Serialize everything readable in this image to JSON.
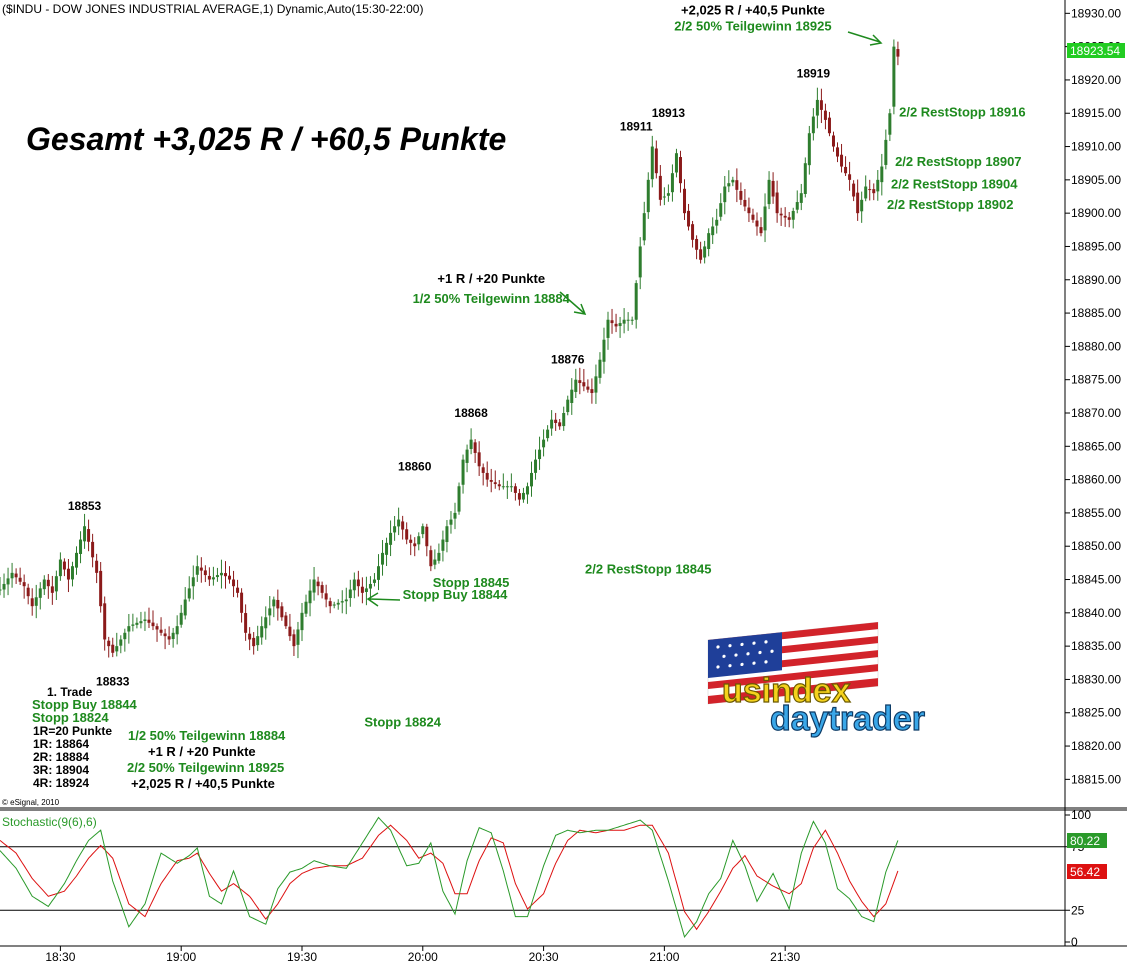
{
  "header": {
    "title": "($INDU - DOW JONES INDUSTRIAL AVERAGE,1) Dynamic,Auto(15:30-22:00)"
  },
  "headline": "Gesamt +3,025 R / +60,5 Punkte",
  "copyright": "© eSignal, 2010",
  "logo": {
    "line1": "usindex",
    "line2": "daytrader"
  },
  "colors": {
    "green": "#1e8a1e",
    "up": "#2e7d2e",
    "down": "#8b1a1a",
    "stoch_k": "#2a9a2a",
    "stoch_d": "#dd1111",
    "last_price_bg": "#22cc22"
  },
  "chart_data": {
    "type": "candlestick",
    "price_axis": {
      "ylim": [
        18811,
        18932
      ],
      "ticks": [
        18815,
        18820,
        18825,
        18830,
        18835,
        18840,
        18845,
        18850,
        18855,
        18860,
        18865,
        18870,
        18875,
        18880,
        18885,
        18890,
        18895,
        18900,
        18905,
        18910,
        18915,
        18920,
        18925,
        18930
      ],
      "tick_labels": [
        "18815.00",
        "18820.00",
        "18825.00",
        "18830.00",
        "18835.00",
        "18840.00",
        "18845.00",
        "18850.00",
        "18855.00",
        "18860.00",
        "18865.00",
        "18870.00",
        "18875.00",
        "18880.00",
        "18885.00",
        "18890.00",
        "18895.00",
        "18900.00",
        "18905.00",
        "18910.00",
        "18915.00",
        "18920.00",
        "18925.00",
        "18930.00"
      ],
      "last_price": 18923.54,
      "last_price_label": "18923.54"
    },
    "time_axis": {
      "labels": [
        "18:30",
        "19:00",
        "19:30",
        "20:00",
        "20:30",
        "21:00",
        "21:30"
      ],
      "label_minutes": [
        15,
        45,
        75,
        105,
        135,
        165,
        195
      ],
      "xlim": [
        0,
        264
      ]
    },
    "price_anchors": [
      [
        0,
        18843.5
      ],
      [
        3,
        18846
      ],
      [
        6,
        18844
      ],
      [
        8,
        18841
      ],
      [
        11,
        18845
      ],
      [
        13,
        18843
      ],
      [
        15,
        18848
      ],
      [
        17,
        18845
      ],
      [
        19,
        18849
      ],
      [
        21,
        18853
      ],
      [
        24,
        18846
      ],
      [
        26,
        18836
      ],
      [
        28,
        18834
      ],
      [
        32,
        18838
      ],
      [
        36,
        18839
      ],
      [
        40,
        18837
      ],
      [
        42,
        18836
      ],
      [
        44,
        18838
      ],
      [
        46,
        18842
      ],
      [
        49,
        18847
      ],
      [
        52,
        18845
      ],
      [
        55,
        18846
      ],
      [
        57,
        18845
      ],
      [
        59,
        18843
      ],
      [
        61,
        18837
      ],
      [
        63,
        18835
      ],
      [
        65,
        18838
      ],
      [
        68,
        18842
      ],
      [
        71,
        18838
      ],
      [
        73,
        18835
      ],
      [
        75,
        18840
      ],
      [
        78,
        18845
      ],
      [
        80,
        18843
      ],
      [
        82,
        18841
      ],
      [
        86,
        18842
      ],
      [
        88,
        18845
      ],
      [
        90,
        18843
      ],
      [
        93,
        18845
      ],
      [
        95,
        18849
      ],
      [
        97,
        18852
      ],
      [
        99,
        18854
      ],
      [
        101,
        18851
      ],
      [
        103,
        18850
      ],
      [
        105,
        18853
      ],
      [
        107,
        18847
      ],
      [
        109,
        18849
      ],
      [
        111,
        18853
      ],
      [
        113,
        18855
      ],
      [
        115,
        18863
      ],
      [
        117,
        18866
      ],
      [
        119,
        18862
      ],
      [
        121,
        18860
      ],
      [
        124,
        18859
      ],
      [
        127,
        18859
      ],
      [
        129,
        18857
      ],
      [
        131,
        18859
      ],
      [
        133,
        18863
      ],
      [
        135,
        18866
      ],
      [
        137,
        18869
      ],
      [
        139,
        18868
      ],
      [
        141,
        18872
      ],
      [
        143,
        18875
      ],
      [
        145,
        18874
      ],
      [
        147,
        18873
      ],
      [
        149,
        18878
      ],
      [
        151,
        18884
      ],
      [
        153,
        18883
      ],
      [
        155,
        18884
      ],
      [
        157,
        18884
      ],
      [
        159,
        18895
      ],
      [
        162,
        18910
      ],
      [
        164,
        18902
      ],
      [
        166,
        18903
      ],
      [
        168,
        18909
      ],
      [
        170,
        18900
      ],
      [
        172,
        18896
      ],
      [
        174,
        18893
      ],
      [
        176,
        18897
      ],
      [
        178,
        18899
      ],
      [
        180,
        18904
      ],
      [
        182,
        18905
      ],
      [
        184,
        18902
      ],
      [
        187,
        18899
      ],
      [
        189,
        18897
      ],
      [
        191,
        18905
      ],
      [
        193,
        18900
      ],
      [
        196,
        18899
      ],
      [
        199,
        18903
      ],
      [
        201,
        18912
      ],
      [
        203,
        18917
      ],
      [
        205,
        18914
      ],
      [
        207,
        18910
      ],
      [
        209,
        18907
      ],
      [
        211,
        18905
      ],
      [
        213,
        18900
      ],
      [
        215,
        18904
      ],
      [
        217,
        18903
      ],
      [
        219,
        18907
      ],
      [
        221,
        18915
      ],
      [
        222,
        18925
      ],
      [
        223,
        18923.5
      ]
    ],
    "stochastic": {
      "label": "Stochastic(9(6),6)",
      "ylim": [
        0,
        100
      ],
      "ticks": [
        0,
        25,
        75,
        100
      ],
      "tick_labels": [
        "0",
        "25",
        "75",
        "100"
      ],
      "bands": [
        25,
        75
      ],
      "k_label": "80.22",
      "d_label": "56.42",
      "k_anchors": [
        [
          0,
          72
        ],
        [
          4,
          58
        ],
        [
          8,
          36
        ],
        [
          12,
          28
        ],
        [
          16,
          46
        ],
        [
          19,
          64
        ],
        [
          22,
          80
        ],
        [
          25,
          88
        ],
        [
          28,
          48
        ],
        [
          32,
          12
        ],
        [
          36,
          30
        ],
        [
          40,
          70
        ],
        [
          44,
          62
        ],
        [
          47,
          68
        ],
        [
          49,
          74
        ],
        [
          52,
          36
        ],
        [
          55,
          30
        ],
        [
          58,
          56
        ],
        [
          62,
          20
        ],
        [
          66,
          14
        ],
        [
          69,
          42
        ],
        [
          72,
          55
        ],
        [
          75,
          58
        ],
        [
          78,
          64
        ],
        [
          82,
          60
        ],
        [
          86,
          58
        ],
        [
          90,
          78
        ],
        [
          94,
          98
        ],
        [
          97,
          88
        ],
        [
          101,
          60
        ],
        [
          104,
          62
        ],
        [
          107,
          78
        ],
        [
          110,
          40
        ],
        [
          113,
          22
        ],
        [
          116,
          64
        ],
        [
          119,
          90
        ],
        [
          122,
          86
        ],
        [
          125,
          56
        ],
        [
          128,
          20
        ],
        [
          131,
          20
        ],
        [
          135,
          60
        ],
        [
          138,
          84
        ],
        [
          141,
          88
        ],
        [
          144,
          86
        ],
        [
          148,
          88
        ],
        [
          151,
          88
        ],
        [
          155,
          92
        ],
        [
          159,
          96
        ],
        [
          162,
          88
        ],
        [
          166,
          48
        ],
        [
          170,
          4
        ],
        [
          173,
          16
        ],
        [
          176,
          38
        ],
        [
          179,
          50
        ],
        [
          182,
          80
        ],
        [
          185,
          60
        ],
        [
          188,
          32
        ],
        [
          192,
          54
        ],
        [
          196,
          26
        ],
        [
          199,
          70
        ],
        [
          202,
          95
        ],
        [
          205,
          78
        ],
        [
          208,
          42
        ],
        [
          211,
          34
        ],
        [
          214,
          20
        ],
        [
          217,
          16
        ],
        [
          220,
          55
        ],
        [
          223,
          80
        ]
      ],
      "d_anchors": [
        [
          0,
          80
        ],
        [
          4,
          70
        ],
        [
          8,
          50
        ],
        [
          12,
          36
        ],
        [
          16,
          40
        ],
        [
          19,
          52
        ],
        [
          22,
          66
        ],
        [
          25,
          76
        ],
        [
          28,
          66
        ],
        [
          32,
          30
        ],
        [
          36,
          20
        ],
        [
          40,
          46
        ],
        [
          44,
          64
        ],
        [
          47,
          66
        ],
        [
          49,
          70
        ],
        [
          52,
          54
        ],
        [
          55,
          40
        ],
        [
          58,
          46
        ],
        [
          62,
          36
        ],
        [
          66,
          18
        ],
        [
          69,
          30
        ],
        [
          72,
          46
        ],
        [
          75,
          54
        ],
        [
          78,
          58
        ],
        [
          82,
          60
        ],
        [
          86,
          60
        ],
        [
          90,
          66
        ],
        [
          94,
          84
        ],
        [
          97,
          92
        ],
        [
          101,
          80
        ],
        [
          104,
          66
        ],
        [
          107,
          70
        ],
        [
          110,
          62
        ],
        [
          113,
          38
        ],
        [
          116,
          38
        ],
        [
          119,
          64
        ],
        [
          122,
          82
        ],
        [
          125,
          78
        ],
        [
          128,
          46
        ],
        [
          131,
          26
        ],
        [
          135,
          38
        ],
        [
          138,
          62
        ],
        [
          141,
          80
        ],
        [
          144,
          88
        ],
        [
          148,
          86
        ],
        [
          151,
          88
        ],
        [
          155,
          88
        ],
        [
          159,
          92
        ],
        [
          162,
          92
        ],
        [
          166,
          70
        ],
        [
          170,
          24
        ],
        [
          173,
          10
        ],
        [
          176,
          24
        ],
        [
          179,
          40
        ],
        [
          182,
          58
        ],
        [
          185,
          68
        ],
        [
          188,
          52
        ],
        [
          192,
          44
        ],
        [
          196,
          38
        ],
        [
          199,
          46
        ],
        [
          202,
          74
        ],
        [
          205,
          88
        ],
        [
          208,
          70
        ],
        [
          211,
          48
        ],
        [
          214,
          32
        ],
        [
          217,
          20
        ],
        [
          220,
          30
        ],
        [
          223,
          56
        ]
      ]
    }
  },
  "peaks": [
    {
      "text": "18853",
      "t": 21,
      "p": 18853
    },
    {
      "text": "18860",
      "t": 103,
      "p": 18859
    },
    {
      "text": "18868",
      "t": 117,
      "p": 18867
    },
    {
      "text": "18876",
      "t": 141,
      "p": 18875
    },
    {
      "text": "18911",
      "t": 158,
      "p": 18910
    },
    {
      "text": "18913",
      "t": 166,
      "p": 18912
    },
    {
      "text": "18919",
      "t": 202,
      "p": 18918
    }
  ],
  "troughs": [
    {
      "text": "18833",
      "t": 28,
      "p": 18833
    }
  ],
  "chart_annotations": [
    {
      "text": "+1 R / +20 Punkte",
      "t": 122,
      "p": 18889.5,
      "color": "black"
    },
    {
      "text": "1/2 50% Teilgewinn 18884",
      "t": 122,
      "p": 18886.5,
      "color": "green"
    },
    {
      "text": "+2,025 R / +40,5 Punkte",
      "t": 187,
      "p": 18929.8,
      "color": "black"
    },
    {
      "text": "2/2 50% Teilgewinn 18925",
      "t": 187,
      "p": 18927.4,
      "color": "green"
    },
    {
      "text": "2/2 RestStopp 18916",
      "t": 239,
      "p": 18914.5,
      "color": "green"
    },
    {
      "text": "2/2 RestStopp 18907",
      "t": 238,
      "p": 18907.1,
      "color": "green"
    },
    {
      "text": "2/2 RestStopp 18904",
      "t": 237,
      "p": 18903.7,
      "color": "green"
    },
    {
      "text": "2/2 RestStopp 18902",
      "t": 236,
      "p": 18900.6,
      "color": "green"
    },
    {
      "text": "2/2 RestStopp 18845",
      "t": 161,
      "p": 18845.9,
      "color": "green"
    },
    {
      "text": "Stopp 18845",
      "t": 117,
      "p": 18843.9,
      "color": "green"
    },
    {
      "text": "Stopp Buy 18844",
      "t": 113,
      "p": 18842.1,
      "color": "green"
    },
    {
      "text": "Stopp 18824",
      "t": 100,
      "p": 18822.9,
      "color": "green"
    }
  ],
  "trade_summary": [
    {
      "text": "1. Trade",
      "color": "black"
    },
    {
      "text": "Stopp Buy 18844",
      "color": "green"
    },
    {
      "text": "Stopp 18824",
      "color": "green"
    },
    {
      "text": "1R=20 Punkte",
      "color": "black"
    },
    {
      "text": "1R: 18864",
      "color": "black"
    },
    {
      "text": "2R: 18884",
      "color": "black"
    },
    {
      "text": "3R: 18904",
      "color": "black"
    },
    {
      "text": "4R: 18924",
      "color": "black"
    }
  ],
  "result_summary": [
    {
      "text": "1/2 50% Teilgewinn 18884",
      "color": "green"
    },
    {
      "text": "+1 R / +20 Punkte",
      "color": "black"
    },
    {
      "text": "2/2 50% Teilgewinn 18925",
      "color": "green"
    },
    {
      "text": "+2,025 R / +40,5 Punkte",
      "color": "black"
    }
  ]
}
